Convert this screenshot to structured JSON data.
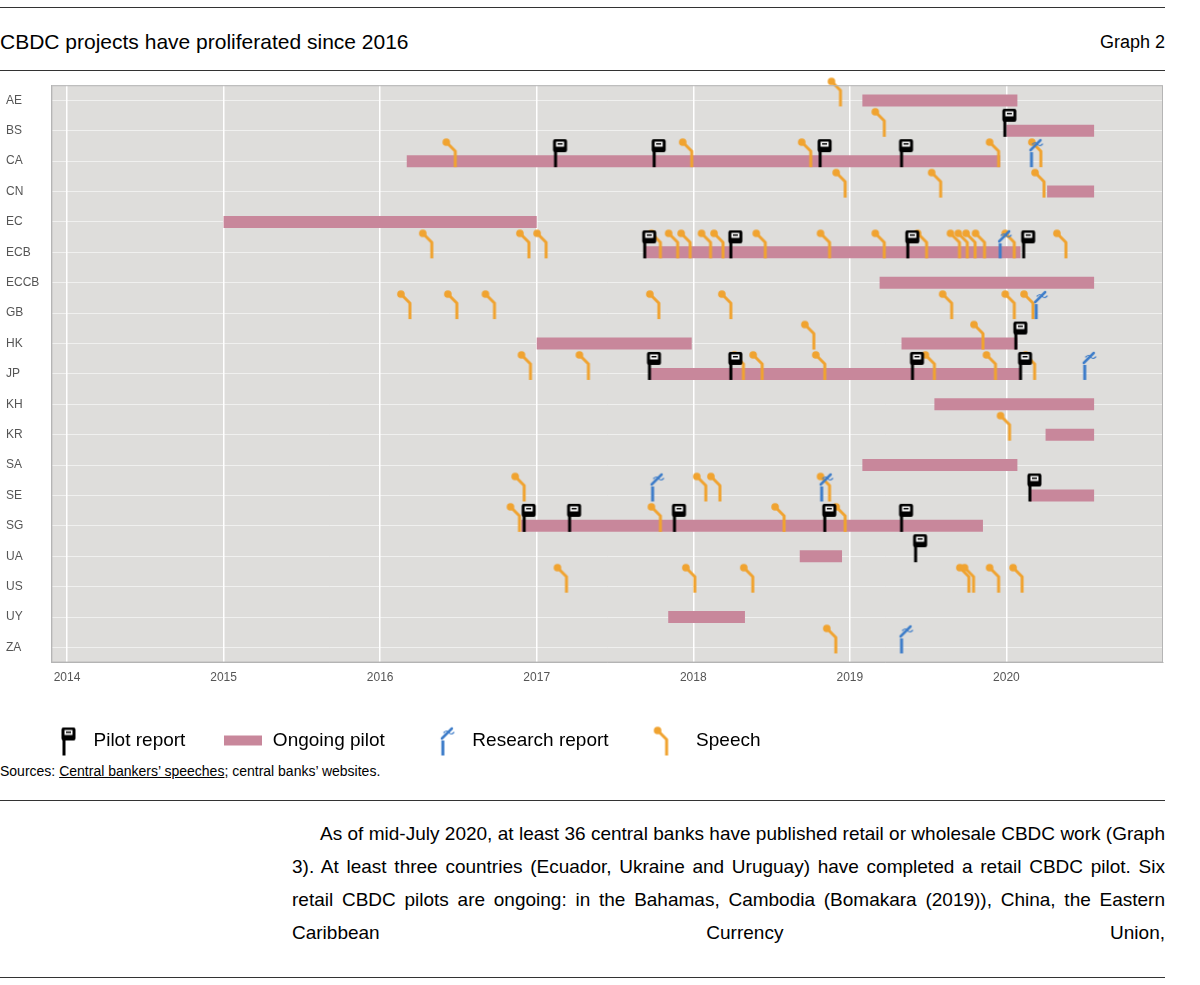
{
  "chart_data": {
    "type": "scatter",
    "title": "CBDC projects have proliferated since 2016",
    "categories": [
      "AE",
      "BS",
      "CA",
      "CN",
      "EC",
      "ECB",
      "ECCB",
      "GB",
      "HK",
      "JP",
      "KH",
      "KR",
      "SA",
      "SE",
      "SG",
      "UA",
      "US",
      "UY",
      "ZA"
    ],
    "xlim": [
      2013.9,
      2021
    ],
    "xticks": [
      2014,
      2015,
      2016,
      2017,
      2018,
      2019,
      2020
    ],
    "grid": true,
    "legend": "bottom",
    "series": [
      {
        "name": "Pilot report",
        "type": "scatter",
        "marker": "pilot_report",
        "color": "#000000",
        "values": [
          {
            "category": "BS",
            "x": 2019.99
          },
          {
            "category": "CA",
            "x": 2017.12
          },
          {
            "category": "CA",
            "x": 2017.75
          },
          {
            "category": "CA",
            "x": 2018.81
          },
          {
            "category": "CA",
            "x": 2019.33
          },
          {
            "category": "ECB",
            "x": 2017.69
          },
          {
            "category": "ECB",
            "x": 2018.24
          },
          {
            "category": "ECB",
            "x": 2019.37
          },
          {
            "category": "ECB",
            "x": 2020.11
          },
          {
            "category": "HK",
            "x": 2020.06
          },
          {
            "category": "JP",
            "x": 2017.72
          },
          {
            "category": "JP",
            "x": 2018.24
          },
          {
            "category": "JP",
            "x": 2019.4
          },
          {
            "category": "JP",
            "x": 2020.09
          },
          {
            "category": "SE",
            "x": 2020.15
          },
          {
            "category": "SG",
            "x": 2016.92
          },
          {
            "category": "SG",
            "x": 2017.21
          },
          {
            "category": "SG",
            "x": 2017.88
          },
          {
            "category": "SG",
            "x": 2018.84
          },
          {
            "category": "SG",
            "x": 2019.33
          },
          {
            "category": "UA",
            "x": 2019.42
          }
        ]
      },
      {
        "name": "Ongoing pilot",
        "type": "bar",
        "color": "#c8879b",
        "values": [
          {
            "category": "AE",
            "start": 2019.08,
            "end": 2020.07
          },
          {
            "category": "BS",
            "start": 2020.0,
            "end": 2020.56
          },
          {
            "category": "CA",
            "start": 2016.17,
            "end": 2019.96
          },
          {
            "category": "CN",
            "start": 2020.26,
            "end": 2020.56
          },
          {
            "category": "EC",
            "start": 2015.0,
            "end": 2017.0
          },
          {
            "category": "ECB",
            "start": 2017.69,
            "end": 2020.09
          },
          {
            "category": "ECCB",
            "start": 2019.19,
            "end": 2020.56
          },
          {
            "category": "HK",
            "start": 2017.0,
            "end": 2017.99
          },
          {
            "category": "HK",
            "start": 2019.33,
            "end": 2020.07
          },
          {
            "category": "JP",
            "start": 2017.72,
            "end": 2020.09
          },
          {
            "category": "KH",
            "start": 2019.54,
            "end": 2020.56
          },
          {
            "category": "KR",
            "start": 2020.25,
            "end": 2020.56
          },
          {
            "category": "SA",
            "start": 2019.08,
            "end": 2020.07
          },
          {
            "category": "SE",
            "start": 2020.15,
            "end": 2020.56
          },
          {
            "category": "SG",
            "start": 2016.9,
            "end": 2019.85
          },
          {
            "category": "UA",
            "start": 2018.68,
            "end": 2018.95
          },
          {
            "category": "UY",
            "start": 2017.84,
            "end": 2018.33
          }
        ]
      },
      {
        "name": "Research report",
        "type": "scatter",
        "marker": "research_report",
        "color": "#3d7cc9",
        "values": [
          {
            "category": "CA",
            "x": 2020.16
          },
          {
            "category": "ECB",
            "x": 2019.96
          },
          {
            "category": "GB",
            "x": 2020.19
          },
          {
            "category": "JP",
            "x": 2020.5
          },
          {
            "category": "SE",
            "x": 2017.74
          },
          {
            "category": "SE",
            "x": 2018.82
          },
          {
            "category": "ZA",
            "x": 2019.33
          }
        ]
      },
      {
        "name": "Speech",
        "type": "scatter",
        "marker": "speech",
        "color": "#f0a330",
        "values": [
          {
            "category": "AE",
            "x": 2018.94
          },
          {
            "category": "BS",
            "x": 2019.22
          },
          {
            "category": "CA",
            "x": 2016.48
          },
          {
            "category": "CA",
            "x": 2017.99
          },
          {
            "category": "CA",
            "x": 2018.75
          },
          {
            "category": "CA",
            "x": 2019.95
          },
          {
            "category": "CA",
            "x": 2020.22
          },
          {
            "category": "CN",
            "x": 2018.97
          },
          {
            "category": "CN",
            "x": 2019.58
          },
          {
            "category": "CN",
            "x": 2020.24
          },
          {
            "category": "ECB",
            "x": 2016.33
          },
          {
            "category": "ECB",
            "x": 2016.95
          },
          {
            "category": "ECB",
            "x": 2017.06
          },
          {
            "category": "ECB",
            "x": 2017.79
          },
          {
            "category": "ECB",
            "x": 2017.9
          },
          {
            "category": "ECB",
            "x": 2017.98
          },
          {
            "category": "ECB",
            "x": 2018.11
          },
          {
            "category": "ECB",
            "x": 2018.19
          },
          {
            "category": "ECB",
            "x": 2018.46
          },
          {
            "category": "ECB",
            "x": 2018.87
          },
          {
            "category": "ECB",
            "x": 2019.22
          },
          {
            "category": "ECB",
            "x": 2019.49
          },
          {
            "category": "ECB",
            "x": 2019.7
          },
          {
            "category": "ECB",
            "x": 2019.75
          },
          {
            "category": "ECB",
            "x": 2019.8
          },
          {
            "category": "ECB",
            "x": 2019.86
          },
          {
            "category": "ECB",
            "x": 2020.05
          },
          {
            "category": "ECB",
            "x": 2020.38
          },
          {
            "category": "GB",
            "x": 2016.19
          },
          {
            "category": "GB",
            "x": 2016.49
          },
          {
            "category": "GB",
            "x": 2016.73
          },
          {
            "category": "GB",
            "x": 2017.78
          },
          {
            "category": "GB",
            "x": 2018.24
          },
          {
            "category": "GB",
            "x": 2019.65
          },
          {
            "category": "GB",
            "x": 2020.05
          },
          {
            "category": "GB",
            "x": 2020.17
          },
          {
            "category": "HK",
            "x": 2018.77
          },
          {
            "category": "HK",
            "x": 2019.85
          },
          {
            "category": "JP",
            "x": 2016.96
          },
          {
            "category": "JP",
            "x": 2017.33
          },
          {
            "category": "JP",
            "x": 2018.32
          },
          {
            "category": "JP",
            "x": 2018.44
          },
          {
            "category": "JP",
            "x": 2018.84
          },
          {
            "category": "JP",
            "x": 2019.54
          },
          {
            "category": "JP",
            "x": 2019.93
          },
          {
            "category": "JP",
            "x": 2020.18
          },
          {
            "category": "KR",
            "x": 2020.02
          },
          {
            "category": "SE",
            "x": 2016.92
          },
          {
            "category": "SE",
            "x": 2018.08
          },
          {
            "category": "SE",
            "x": 2018.17
          },
          {
            "category": "SE",
            "x": 2018.87
          },
          {
            "category": "SG",
            "x": 2016.89
          },
          {
            "category": "SG",
            "x": 2017.79
          },
          {
            "category": "SG",
            "x": 2018.58
          },
          {
            "category": "SG",
            "x": 2018.97
          },
          {
            "category": "US",
            "x": 2017.19
          },
          {
            "category": "US",
            "x": 2018.01
          },
          {
            "category": "US",
            "x": 2018.38
          },
          {
            "category": "US",
            "x": 2019.76
          },
          {
            "category": "US",
            "x": 2019.79
          },
          {
            "category": "US",
            "x": 2019.95
          },
          {
            "category": "US",
            "x": 2020.1
          },
          {
            "category": "ZA",
            "x": 2018.91
          }
        ]
      }
    ]
  },
  "page": {
    "graph_label": "Graph 2",
    "sources": "Sources: Central bankers’ speeches; central banks’ websites.",
    "sources_link": "Central bankers’ speeches",
    "body_text": "As of mid-July 2020, at least 36 central banks have published retail or wholesale CBDC work (Graph 3). At least three countries (Ecuador, Ukraine and Uruguay) have completed a retail CBDC pilot. Six retail CBDC pilots are ongoing: in the Bahamas, Cambodia (Bomakara (2019)), China, the Eastern Caribbean Currency Union,"
  }
}
